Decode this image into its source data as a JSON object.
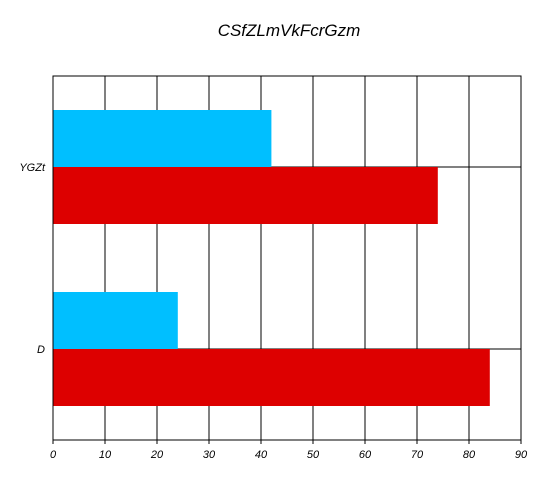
{
  "chart_data": {
    "type": "bar",
    "orientation": "horizontal",
    "title": "CSfZLmVkFcrGzm",
    "xlabel": "",
    "ylabel": "",
    "categories": [
      "D",
      "YGZt"
    ],
    "series": [
      {
        "values": [
          84,
          74
        ],
        "color": "#dd0000"
      },
      {
        "values": [
          24,
          42
        ],
        "color": "#00bfff"
      }
    ],
    "xlim": [
      0,
      90
    ],
    "xticks": [
      0,
      10,
      20,
      30,
      40,
      50,
      60,
      70,
      80,
      90
    ],
    "grid": true,
    "legend": "none"
  }
}
